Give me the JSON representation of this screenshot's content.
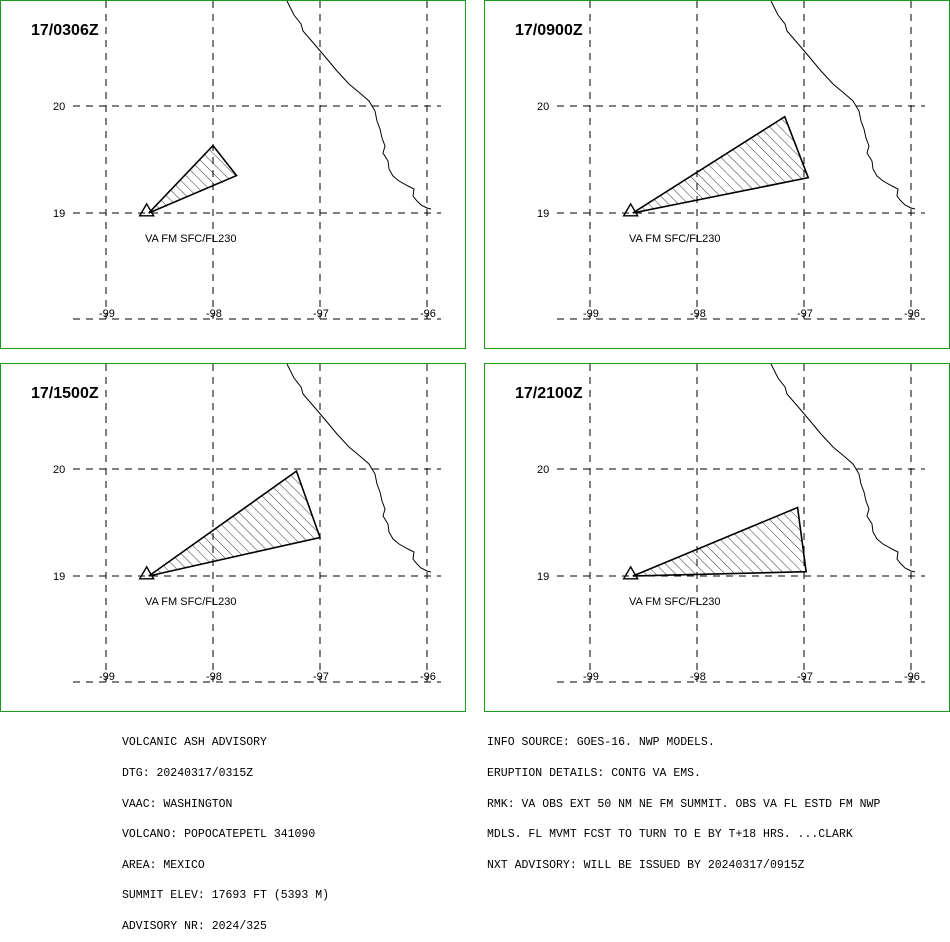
{
  "panels": [
    {
      "title": "17/0306Z",
      "va_label": "VA FM SFC/FL230",
      "ash_polygon": [
        [
          -98.6,
          19.0
        ],
        [
          -98.0,
          19.63
        ],
        [
          -97.78,
          19.35
        ]
      ]
    },
    {
      "title": "17/0900Z",
      "va_label": "VA FM SFC/FL230",
      "ash_polygon": [
        [
          -98.6,
          19.0
        ],
        [
          -97.18,
          19.9
        ],
        [
          -96.96,
          19.33
        ]
      ]
    },
    {
      "title": "17/1500Z",
      "va_label": "VA FM SFC/FL230",
      "ash_polygon": [
        [
          -98.6,
          19.0
        ],
        [
          -97.22,
          19.98
        ],
        [
          -97.0,
          19.36
        ]
      ]
    },
    {
      "title": "17/2100Z",
      "va_label": "VA FM SFC/FL230",
      "ash_polygon": [
        [
          -98.6,
          19.0
        ],
        [
          -97.06,
          19.64
        ],
        [
          -96.98,
          19.04
        ]
      ]
    }
  ],
  "axes": {
    "lon_ticks": [
      -99,
      -98,
      -97,
      -96
    ],
    "lat_ticks": [
      20,
      19
    ],
    "lon_labels": [
      "-99",
      "-98",
      "-97",
      "-96"
    ],
    "lat_labels": [
      "20",
      "19"
    ]
  },
  "volcano": {
    "lon": -98.62,
    "lat": 19.02,
    "marker": "triangle-icon"
  },
  "advisory_left": [
    "VOLCANIC ASH ADVISORY",
    "DTG: 20240317/0315Z",
    "VAAC: WASHINGTON",
    "VOLCANO: POPOCATEPETL 341090",
    "AREA: MEXICO",
    "SUMMIT ELEV: 17693 FT (5393 M)",
    "ADVISORY NR: 2024/325"
  ],
  "advisory_right": [
    "INFO SOURCE: GOES-16. NWP MODELS.",
    "ERUPTION DETAILS: CONTG VA EMS.",
    "RMK: VA OBS EXT 50 NM NE FM SUMMIT. OBS VA FL ESTD FM NWP",
    "MDLS. FL MVMT FCST TO TURN TO E BY T+18 HRS. ...CLARK",
    "NXT ADVISORY: WILL BE ISSUED BY 20240317/0915Z"
  ],
  "colors": {
    "panel_border": "#1a9a1a",
    "ink": "#000000"
  }
}
